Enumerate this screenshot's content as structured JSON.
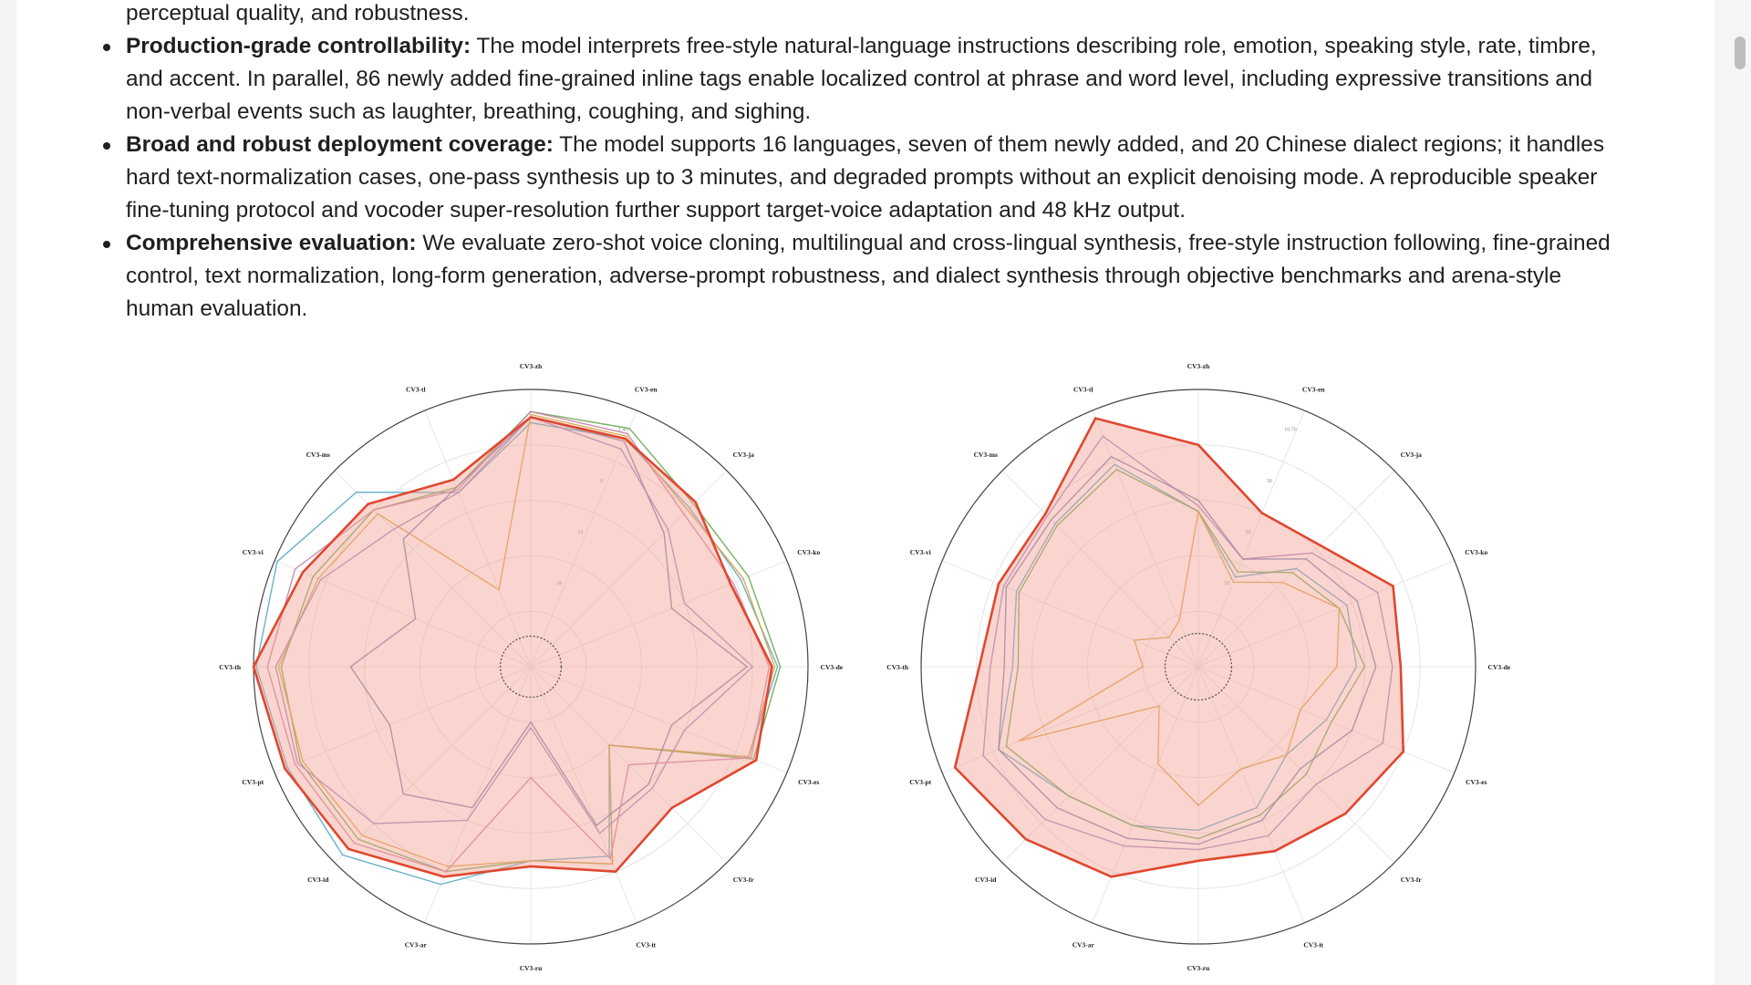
{
  "intro_tail": "perceptual quality, and robustness.",
  "bullets": [
    {
      "lead": "Production-grade controllability:",
      "lines": [
        " The model interprets free-style natural-language instructions describing role, emotion, speaking style, rate, timbre,",
        "and accent. In parallel, 86 newly added fine-grained inline tags enable localized control at phrase and word level, including expressive transitions and",
        "non-verbal events such as laughter, breathing, coughing, and sighing."
      ]
    },
    {
      "lead": "Broad and robust deployment coverage:",
      "lines": [
        " The model supports 16 languages, seven of them newly added, and 20 Chinese dialect regions; it handles",
        "hard text-normalization cases, one-pass synthesis up to 3 minutes, and degraded prompts without an explicit denoising mode. A reproducible speaker",
        "fine-tuning protocol and vocoder super-resolution further support target-voice adaptation and 48 kHz output."
      ]
    },
    {
      "lead": "Comprehensive evaluation:",
      "lines": [
        " We evaluate zero-shot voice cloning, multilingual and cross-lingual synthesis, free-style instruction following, fine-grained",
        "control, text normalization, long-form generation, adverse-prompt robustness, and dialect synthesis through objective benchmarks and arena-style",
        "human evaluation."
      ]
    }
  ],
  "colors": {
    "ours_stroke": "#e0472f",
    "ours_fill": "#f5a195",
    "series_colors": [
      "#e0472f",
      "#5ba8c8",
      "#6aa84f",
      "#d9a23d",
      "#9a83c4",
      "#6f7fb0",
      "#c97fa8"
    ]
  },
  "chart_data": [
    {
      "type": "radar",
      "axes": [
        "CV3-zh",
        "CV3-en",
        "CV3-ja",
        "CV3-ko",
        "CV3-de",
        "CV3-es",
        "CV3-fr",
        "CV3-it",
        "CV3-ru",
        "CV3-ar",
        "CV3-id",
        "CV3-pt",
        "CV3-th",
        "CV3-vi",
        "CV3-ms",
        "CV3-tl"
      ],
      "ring_labels": [
        "1.45",
        "6",
        "12",
        "18"
      ],
      "rmax": 1.0,
      "inner_circle": 0.11,
      "series": [
        {
          "values": [
            0.9,
            0.89,
            0.84,
            0.78,
            0.87,
            0.88,
            0.72,
            0.8,
            0.72,
            0.82,
            0.93,
            0.96,
            1.0,
            0.89,
            0.83,
            0.73
          ]
        },
        {
          "values": [
            0.88,
            0.89,
            0.81,
            0.82,
            0.89,
            0.85,
            0.4,
            0.74,
            0.7,
            0.85,
            0.96,
            0.95,
            0.99,
            0.99,
            0.89,
            0.68
          ]
        },
        {
          "values": [
            0.92,
            0.93,
            0.83,
            0.85,
            0.9,
            0.87,
            0.4,
            0.77,
            0.7,
            0.8,
            0.88,
            0.9,
            0.9,
            0.85,
            0.8,
            0.7
          ]
        },
        {
          "values": [
            0.91,
            0.9,
            0.8,
            0.83,
            0.88,
            0.85,
            0.4,
            0.77,
            0.7,
            0.78,
            0.86,
            0.89,
            0.91,
            0.83,
            0.78,
            0.3
          ]
        },
        {
          "values": [
            0.9,
            0.85,
            0.7,
            0.6,
            0.8,
            0.6,
            0.62,
            0.65,
            0.22,
            0.6,
            0.8,
            0.91,
            0.92,
            0.82,
            0.7,
            0.68
          ]
        },
        {
          "values": [
            0.9,
            0.88,
            0.68,
            0.55,
            0.78,
            0.55,
            0.6,
            0.62,
            0.2,
            0.55,
            0.65,
            0.55,
            0.65,
            0.45,
            0.65,
            0.7
          ]
        },
        {
          "values": [
            0.92,
            0.91,
            0.78,
            0.79,
            0.86,
            0.86,
            0.5,
            0.75,
            0.4,
            0.8,
            0.9,
            0.92,
            0.95,
            0.92,
            0.8,
            0.69
          ]
        }
      ]
    },
    {
      "type": "radar",
      "axes": [
        "CV3-zh",
        "CV3-en",
        "CV3-ja",
        "CV3-ko",
        "CV3-de",
        "CV3-es",
        "CV3-fr",
        "CV3-it",
        "CV3-ru",
        "CV3-ar",
        "CV3-id",
        "CV3-pt",
        "CV3-th",
        "CV3-vi",
        "CV3-ms",
        "CV3-tl"
      ],
      "ring_labels": [
        "10.76",
        "30",
        "50",
        "10"
      ],
      "rmax": 1.0,
      "inner_circle": 0.12,
      "series": [
        {
          "values": [
            0.8,
            0.6,
            0.62,
            0.76,
            0.73,
            0.8,
            0.75,
            0.72,
            0.7,
            0.82,
            0.88,
            0.95,
            0.79,
            0.78,
            0.78,
            0.97
          ]
        },
        {
          "values": [
            0.56,
            0.35,
            0.5,
            0.58,
            0.57,
            0.5,
            0.45,
            0.55,
            0.59,
            0.62,
            0.66,
            0.78,
            0.67,
            0.71,
            0.73,
            0.79
          ]
        },
        {
          "values": [
            0.56,
            0.37,
            0.48,
            0.55,
            0.6,
            0.52,
            0.55,
            0.58,
            0.62,
            0.62,
            0.66,
            0.75,
            0.65,
            0.7,
            0.72,
            0.77
          ]
        },
        {
          "values": [
            0.56,
            0.33,
            0.43,
            0.55,
            0.5,
            0.4,
            0.45,
            0.4,
            0.5,
            0.38,
            0.2,
            0.7,
            0.2,
            0.25,
            0.15,
            0.18
          ]
        },
        {
          "values": [
            0.58,
            0.42,
            0.58,
            0.7,
            0.7,
            0.72,
            0.6,
            0.66,
            0.66,
            0.7,
            0.78,
            0.84,
            0.75,
            0.76,
            0.77,
            0.9
          ]
        },
        {
          "values": [
            0.6,
            0.42,
            0.55,
            0.62,
            0.64,
            0.6,
            0.52,
            0.6,
            0.64,
            0.67,
            0.72,
            0.78,
            0.7,
            0.75,
            0.75,
            0.82
          ]
        }
      ]
    }
  ]
}
